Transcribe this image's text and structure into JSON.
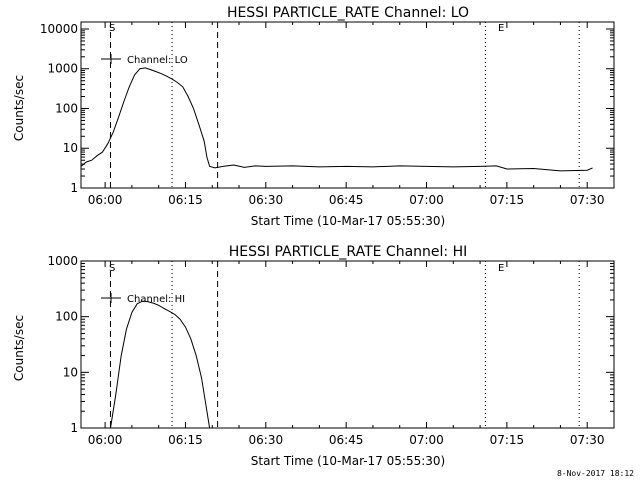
{
  "footer": {
    "timestamp": "8-Nov-2017 18:12"
  },
  "chart_data": [
    {
      "type": "line",
      "scale": "log",
      "title": "HESSI PARTICLE_RATE Channel: LO",
      "xlabel": "Start Time (10-Mar-17 05:55:30)",
      "ylabel": "Counts/sec",
      "xticks": [
        "06:00",
        "06:15",
        "06:30",
        "06:45",
        "07:00",
        "07:15",
        "07:30"
      ],
      "yticks": [
        "1",
        "10",
        "100",
        "1000",
        "10000"
      ],
      "ylim": [
        1,
        15000
      ],
      "legend": {
        "label": "Channel: LO",
        "position": "top-left"
      },
      "markers": {
        "start": "S",
        "end": "E"
      },
      "series": [
        {
          "name": "Channel: LO",
          "x": [
            "05:55:30",
            "05:56:30",
            "05:57:30",
            "05:58:30",
            "05:59:30",
            "06:00:30",
            "06:01:30",
            "06:02:30",
            "06:03:30",
            "06:04:30",
            "06:05:30",
            "06:06:30",
            "06:07:30",
            "06:08:30",
            "06:09:30",
            "06:10:30",
            "06:11:30",
            "06:12:30",
            "06:13:30",
            "06:14:30",
            "06:15:30",
            "06:16:30",
            "06:17:30",
            "06:18:30",
            "06:19:00",
            "06:19:30",
            "06:20:30",
            "06:22:00",
            "06:24:00",
            "06:26:00",
            "06:28:00",
            "06:30:00",
            "06:35:00",
            "06:40:00",
            "06:45:00",
            "06:50:00",
            "06:55:00",
            "07:00:00",
            "07:05:00",
            "07:10:00",
            "07:13:00",
            "07:14:00",
            "07:15:00",
            "07:20:00",
            "07:25:00",
            "07:30:00",
            "07:31:00"
          ],
          "y": [
            3.5,
            4.5,
            5,
            6.5,
            8,
            13,
            25,
            60,
            150,
            350,
            700,
            1000,
            1050,
            950,
            850,
            750,
            650,
            550,
            450,
            350,
            200,
            100,
            40,
            15,
            6,
            3.5,
            3.2,
            3.5,
            3.8,
            3.3,
            3.6,
            3.5,
            3.6,
            3.4,
            3.5,
            3.4,
            3.6,
            3.5,
            3.4,
            3.5,
            3.6,
            3.3,
            3,
            3.1,
            2.7,
            2.8,
            3.2
          ]
        }
      ]
    },
    {
      "type": "line",
      "scale": "log",
      "title": "HESSI PARTICLE_RATE Channel: HI",
      "xlabel": "Start Time (10-Mar-17 05:55:30)",
      "ylabel": "Counts/sec",
      "xticks": [
        "06:00",
        "06:15",
        "06:30",
        "06:45",
        "07:00",
        "07:15",
        "07:30"
      ],
      "yticks": [
        "1",
        "10",
        "100",
        "1000"
      ],
      "ylim": [
        1,
        1000
      ],
      "legend": {
        "label": "Channel: HI",
        "position": "top-left"
      },
      "markers": {
        "start": "S",
        "end": "E"
      },
      "series": [
        {
          "name": "Channel: HI",
          "x": [
            "06:01:00",
            "06:02:00",
            "06:03:00",
            "06:04:00",
            "06:05:00",
            "06:06:00",
            "06:07:00",
            "06:08:00",
            "06:09:00",
            "06:10:00",
            "06:11:00",
            "06:12:00",
            "06:13:00",
            "06:14:00",
            "06:15:00",
            "06:16:00",
            "06:17:00",
            "06:18:00",
            "06:19:00",
            "06:19:30"
          ],
          "y": [
            1,
            4,
            20,
            60,
            120,
            170,
            190,
            185,
            175,
            160,
            140,
            125,
            110,
            90,
            65,
            40,
            20,
            8,
            2,
            1
          ]
        }
      ]
    }
  ]
}
